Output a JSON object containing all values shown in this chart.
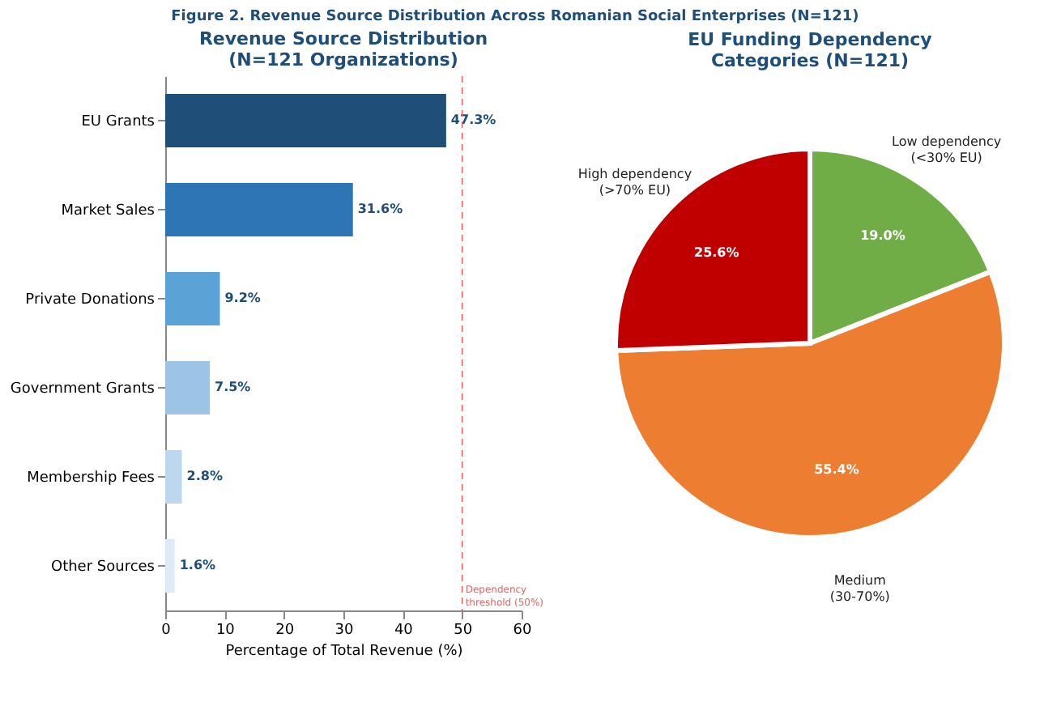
{
  "chart_data": [
    {
      "type": "bar",
      "orientation": "horizontal",
      "title": "Revenue Source Distribution\n(N=121 Organizations)",
      "xlabel": "Percentage of Total Revenue (%)",
      "annotations": [
        "Figure 2. Revenue Source Distribution Across Romanian Social Enterprises (N=121)"
      ],
      "categories": [
        "EU Grants",
        "Market Sales",
        "Private Donations",
        "Government Grants",
        "Membership Fees",
        "Other Sources"
      ],
      "values": [
        47.3,
        31.6,
        9.2,
        7.5,
        2.8,
        1.6
      ],
      "colors": [
        "#1f4e79",
        "#2e75b6",
        "#5ba3d6",
        "#9dc3e6",
        "#bdd7ee",
        "#deebf7"
      ],
      "value_labels": [
        "47.3%",
        "31.6%",
        "9.2%",
        "7.5%",
        "2.8%",
        "1.6%"
      ],
      "xlim": [
        0,
        60
      ],
      "xticks": [
        0,
        10,
        20,
        30,
        40,
        50,
        60
      ],
      "grid": false,
      "ref_lines": [
        {
          "axis": "x",
          "value": 50,
          "label": "Dependency\nthreshold (50%)",
          "color": "#e06666",
          "line_style": "dashed"
        }
      ]
    },
    {
      "type": "pie",
      "title": "EU Funding Dependency\nCategories (N=121)",
      "categories": [
        "Low dependency\n(<30% EU)",
        "Medium\n(30-70%)",
        "High dependency\n(>70% EU)"
      ],
      "values": [
        19.0,
        55.4,
        25.6
      ],
      "colors": [
        "#70ad47",
        "#ed7d31",
        "#c00000"
      ],
      "value_labels": [
        "19.0%",
        "55.4%",
        "25.6%"
      ]
    }
  ]
}
